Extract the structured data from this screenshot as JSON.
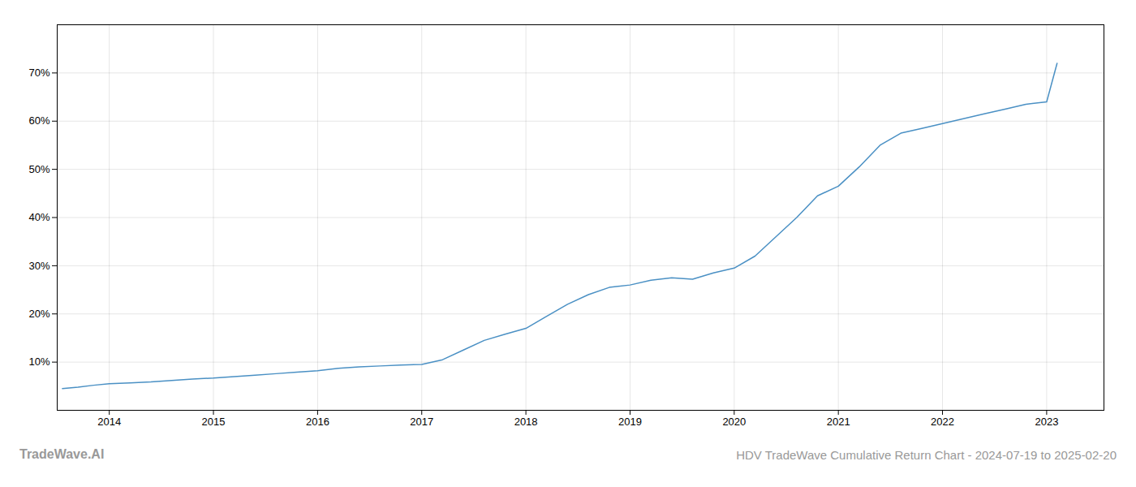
{
  "chart_data": {
    "type": "line",
    "title": "HDV TradeWave Cumulative Return Chart - 2024-07-19 to 2025-02-20",
    "annotations": [
      "TradeWave.AI"
    ],
    "x": [
      2013.55,
      2013.7,
      2013.85,
      2014.0,
      2014.2,
      2014.4,
      2014.6,
      2014.8,
      2015.0,
      2015.2,
      2015.4,
      2015.6,
      2015.8,
      2016.0,
      2016.2,
      2016.4,
      2016.6,
      2016.8,
      2017.0,
      2017.2,
      2017.4,
      2017.6,
      2017.8,
      2018.0,
      2018.2,
      2018.4,
      2018.6,
      2018.8,
      2019.0,
      2019.2,
      2019.4,
      2019.6,
      2019.8,
      2020.0,
      2020.2,
      2020.4,
      2020.6,
      2020.8,
      2021.0,
      2021.2,
      2021.4,
      2021.6,
      2021.8,
      2022.0,
      2022.2,
      2022.4,
      2022.6,
      2022.8,
      2023.0,
      2023.1
    ],
    "values": [
      4.5,
      4.8,
      5.2,
      5.5,
      5.7,
      5.9,
      6.2,
      6.5,
      6.7,
      7.0,
      7.3,
      7.6,
      7.9,
      8.2,
      8.7,
      9.0,
      9.2,
      9.4,
      9.5,
      10.5,
      12.5,
      14.5,
      15.8,
      17.0,
      19.5,
      22.0,
      24.0,
      25.5,
      26.0,
      27.0,
      27.5,
      27.2,
      28.5,
      29.5,
      32.0,
      36.0,
      40.0,
      44.5,
      46.5,
      50.5,
      55.0,
      57.5,
      58.5,
      59.5,
      60.5,
      61.5,
      62.5,
      63.5,
      64.0,
      72.0
    ],
    "color": "#4a90c4",
    "xlim": [
      2013.5,
      2023.55
    ],
    "xticks": [
      2014,
      2015,
      2016,
      2017,
      2018,
      2019,
      2020,
      2021,
      2022,
      2023
    ],
    "ylim": [
      0,
      80
    ],
    "yticks": [
      {
        "value": 10,
        "label": "10%"
      },
      {
        "value": 20,
        "label": "20%"
      },
      {
        "value": 30,
        "label": "30%"
      },
      {
        "value": 40,
        "label": "40%"
      },
      {
        "value": 50,
        "label": "50%"
      },
      {
        "value": 60,
        "label": "60%"
      },
      {
        "value": 70,
        "label": "70%"
      }
    ],
    "grid": true
  }
}
